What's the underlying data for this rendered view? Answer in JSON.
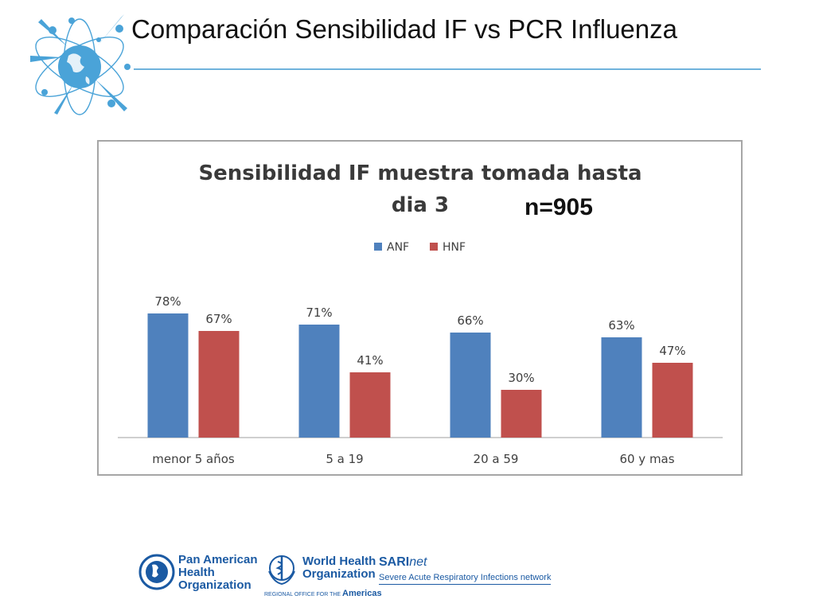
{
  "slide": {
    "title": "Comparación Sensibilidad IF vs PCR Influenza"
  },
  "chart_data": {
    "type": "bar",
    "title": "Sensibilidad IF muestra tomada hasta dia 3",
    "title_lines": [
      "Sensibilidad IF muestra tomada hasta",
      "dia 3"
    ],
    "annotation": "n=905",
    "categories": [
      "menor 5 años",
      "5 a 19",
      "20 a 59",
      "60 y mas"
    ],
    "series": [
      {
        "name": "ANF",
        "values": [
          78,
          71,
          66,
          63
        ],
        "labels": [
          "78%",
          "71%",
          "66%",
          "63%"
        ],
        "color": "#4f81bd"
      },
      {
        "name": "HNF",
        "values": [
          67,
          41,
          30,
          47
        ],
        "labels": [
          "67%",
          "41%",
          "30%",
          "47%"
        ],
        "color": "#c0504d"
      }
    ],
    "ylim": [
      0,
      100
    ],
    "legend_position": "top-center",
    "grid": false
  },
  "footer": {
    "paho_lines": [
      "Pan American",
      "Health",
      "Organization"
    ],
    "who_lines": [
      "World Health",
      "Organization"
    ],
    "who_regional_prefix": "REGIONAL OFFICE FOR THE",
    "who_regional_name": "Americas",
    "sari_name_bold": "SARI",
    "sari_name_italic": "net",
    "sari_subtitle": "Severe Acute Respiratory Infections network"
  },
  "colors": {
    "accent_line": "#6fb3dc",
    "logo_blue": "#4aa3d8",
    "footer_blue": "#1b5aa3"
  },
  "icons": {
    "header_logo": "globe-molecule-icon",
    "paho_logo": "paho-emblem-icon",
    "who_logo": "who-emblem-icon"
  }
}
